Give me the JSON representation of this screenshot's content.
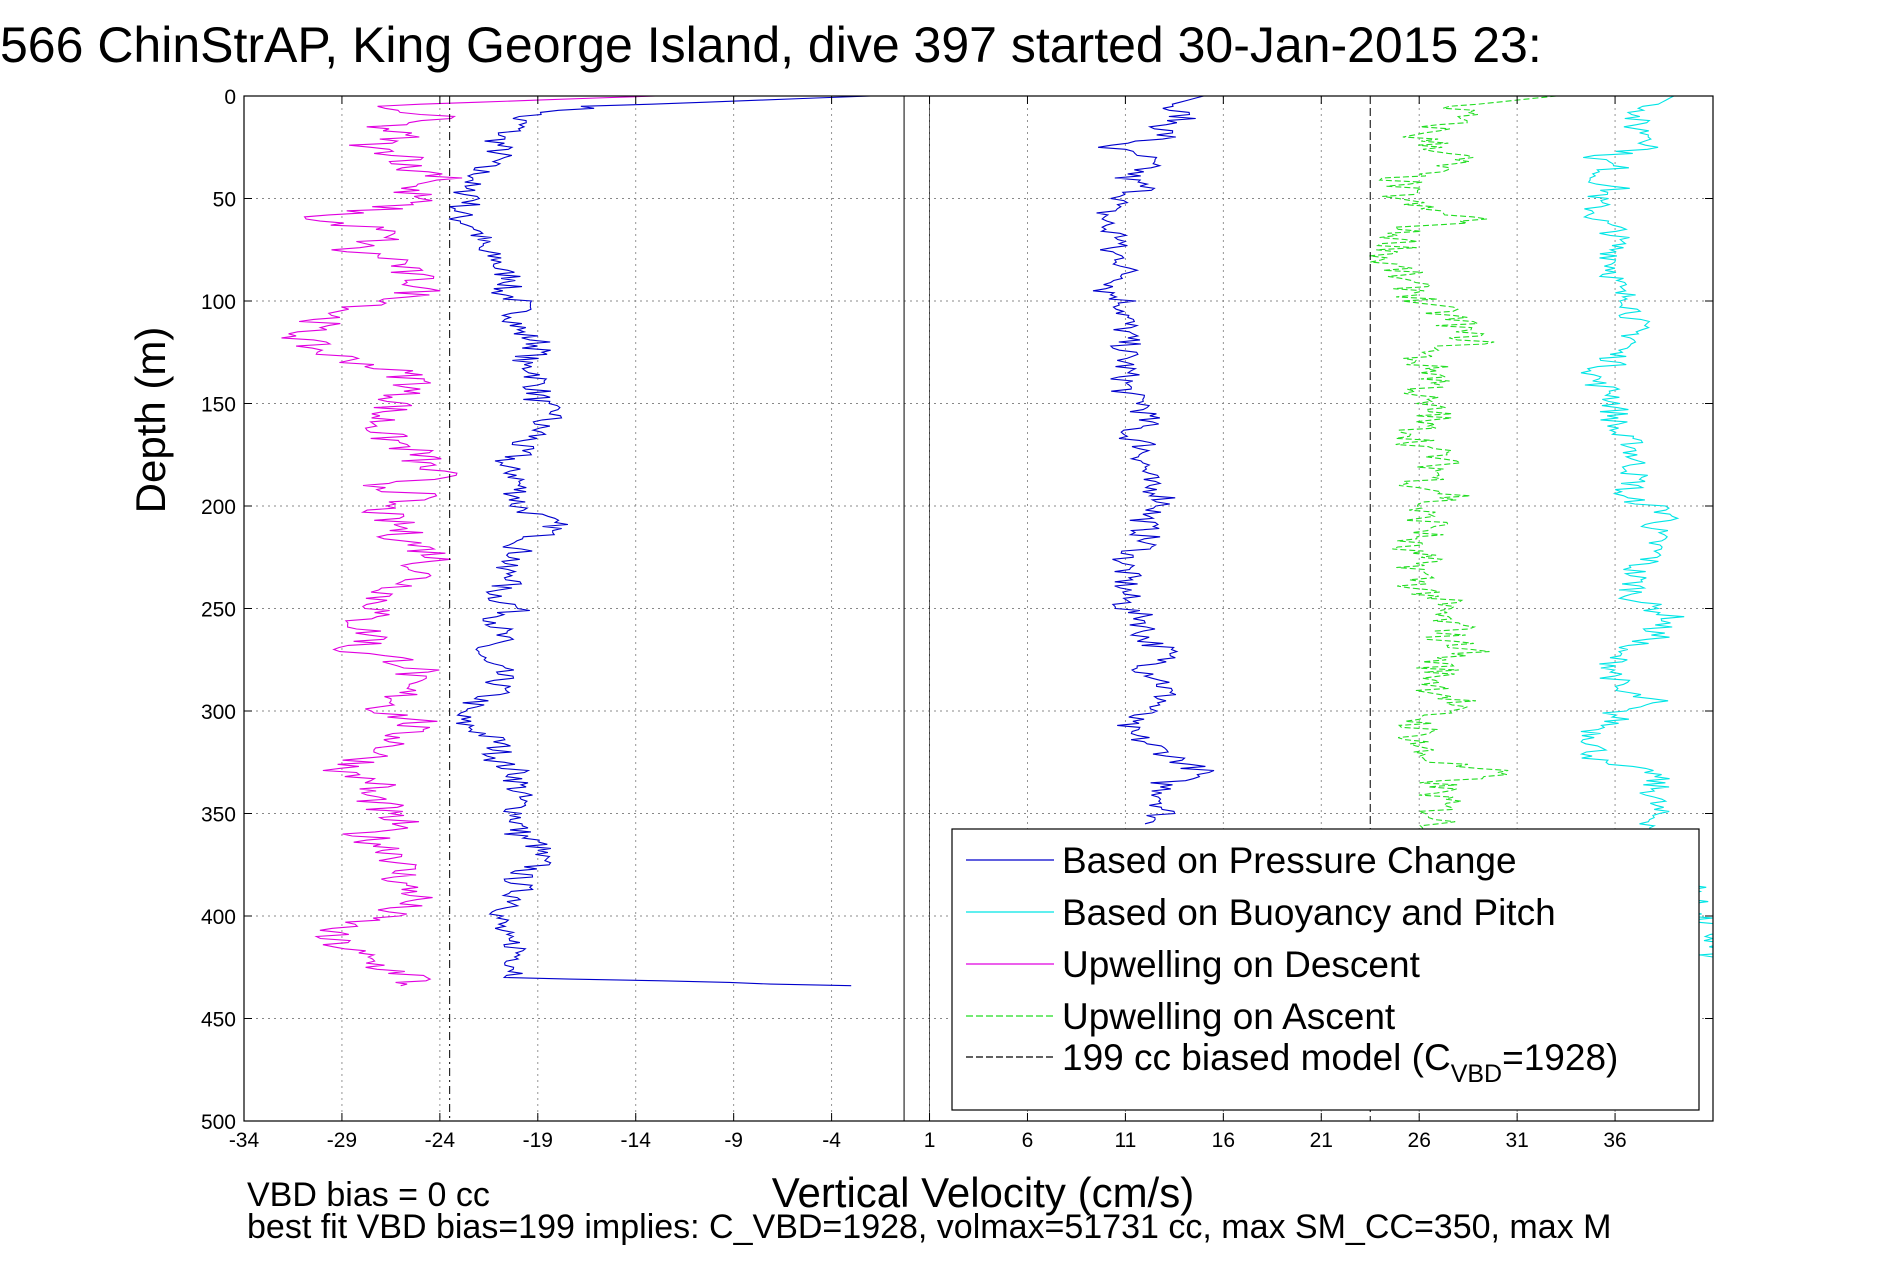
{
  "chart_data": {
    "type": "line",
    "title": "566 ChinStrAP, King George Island, dive 397 started 30-Jan-2015 23:",
    "xlabel": "Vertical Velocity (cm/s)",
    "ylabel": "Depth (m)",
    "xlim": [
      -34,
      41
    ],
    "ylim": [
      500,
      0
    ],
    "y_reversed": true,
    "grid": true,
    "x_ticks": [
      "-34",
      "-29",
      "-24",
      "-19",
      "-14",
      "-9",
      "-4",
      "1",
      "6",
      "11",
      "16",
      "21",
      "26",
      "31",
      "36"
    ],
    "y_ticks": [
      "0",
      "50",
      "100",
      "150",
      "200",
      "250",
      "300",
      "350",
      "400",
      "450",
      "500"
    ],
    "legend_position": "bottom-right",
    "series": [
      {
        "name": "Based on Pressure Change",
        "color": "#0000cc",
        "style": "solid",
        "descent": {
          "depth": [
            0,
            5,
            10,
            15,
            20,
            25,
            30,
            35,
            40,
            45,
            50,
            55,
            60,
            65,
            70,
            75,
            80,
            85,
            90,
            95,
            100,
            105,
            110,
            115,
            120,
            125,
            130,
            135,
            140,
            145,
            150,
            155,
            160,
            165,
            170,
            175,
            180,
            185,
            190,
            195,
            200,
            205,
            210,
            215,
            220,
            225,
            230,
            235,
            240,
            245,
            250,
            255,
            260,
            265,
            270,
            275,
            280,
            285,
            290,
            295,
            300,
            305,
            310,
            315,
            320,
            325,
            330,
            335,
            340,
            345,
            350,
            355,
            360,
            365,
            370,
            375,
            380,
            385,
            390,
            395,
            400,
            405,
            410,
            415,
            420,
            425,
            430,
            434
          ],
          "v": [
            -2,
            -16,
            -20,
            -20,
            -21,
            -21,
            -21,
            -22,
            -22,
            -23,
            -22,
            -23,
            -23,
            -22,
            -22,
            -22,
            -21,
            -21,
            -20,
            -21,
            -20,
            -20,
            -20,
            -20,
            -19,
            -19,
            -20,
            -19,
            -19,
            -19,
            -19,
            -18,
            -19,
            -19,
            -20,
            -20,
            -21,
            -20,
            -20,
            -20,
            -20,
            -19,
            -18,
            -19,
            -20,
            -20,
            -21,
            -20,
            -21,
            -21,
            -20,
            -21,
            -21,
            -21,
            -22,
            -22,
            -21,
            -21,
            -21,
            -22,
            -23,
            -23,
            -22,
            -21,
            -21,
            -21,
            -20,
            -20,
            -20,
            -20,
            -20,
            -20,
            -20,
            -19,
            -19,
            -19,
            -20,
            -20,
            -20,
            -20,
            -21,
            -21,
            -21,
            -20,
            -20,
            -20,
            -20,
            -3
          ]
        },
        "ascent": {
          "depth": [
            0,
            5,
            10,
            15,
            20,
            25,
            30,
            35,
            40,
            45,
            50,
            55,
            60,
            65,
            70,
            75,
            80,
            85,
            90,
            95,
            100,
            105,
            110,
            115,
            120,
            125,
            130,
            135,
            140,
            145,
            150,
            155,
            160,
            165,
            170,
            175,
            180,
            185,
            190,
            195,
            200,
            205,
            210,
            215,
            220,
            225,
            230,
            235,
            240,
            245,
            250,
            255,
            260,
            265,
            270,
            275,
            280,
            285,
            290,
            295,
            300,
            305,
            310,
            315,
            320,
            325,
            330,
            335,
            340,
            345,
            350,
            355
          ],
          "v": [
            15,
            13,
            14,
            13,
            13,
            10,
            12,
            12,
            11,
            12,
            11,
            10,
            10,
            10,
            11,
            10,
            11,
            11,
            11,
            10,
            11,
            11,
            11,
            11,
            11,
            11,
            11,
            11,
            11,
            11,
            12,
            12,
            12,
            11,
            12,
            12,
            12,
            12,
            12,
            13,
            13,
            12,
            12,
            12,
            12,
            11,
            11,
            11,
            11,
            11,
            11,
            12,
            12,
            12,
            13,
            13,
            12,
            13,
            13,
            13,
            12,
            11,
            11,
            12,
            13,
            14,
            15,
            13,
            13,
            13,
            13,
            12
          ]
        }
      },
      {
        "name": "Based on Buoyancy and Pitch",
        "color": "#00e5e5",
        "style": "solid",
        "ascent": {
          "depth": [
            0,
            5,
            10,
            15,
            20,
            25,
            30,
            35,
            40,
            45,
            50,
            55,
            60,
            65,
            70,
            75,
            80,
            85,
            90,
            95,
            100,
            105,
            110,
            115,
            120,
            125,
            130,
            135,
            140,
            145,
            150,
            155,
            160,
            165,
            170,
            175,
            180,
            185,
            190,
            195,
            200,
            205,
            210,
            215,
            220,
            225,
            230,
            235,
            240,
            245,
            250,
            255,
            260,
            265,
            270,
            275,
            280,
            285,
            290,
            295,
            300,
            305,
            310,
            315,
            320,
            325,
            330,
            335,
            340,
            345,
            350,
            355,
            360,
            365,
            370,
            375,
            380,
            385,
            390,
            395,
            400,
            405,
            410,
            415,
            420
          ],
          "v": [
            39,
            38,
            37,
            37,
            38,
            38,
            35,
            36,
            35,
            36,
            35,
            35,
            35,
            36,
            36,
            36,
            36,
            36,
            36,
            36,
            37,
            37,
            37,
            37,
            37,
            36,
            36,
            35,
            35,
            36,
            36,
            36,
            36,
            36,
            37,
            37,
            37,
            37,
            37,
            36,
            38,
            39,
            38,
            38,
            38,
            38,
            37,
            37,
            37,
            37,
            38,
            39,
            38,
            38,
            36,
            36,
            36,
            36,
            36,
            38,
            36,
            36,
            35,
            35,
            35,
            35,
            38,
            38,
            38,
            38,
            38,
            38,
            38,
            38,
            38,
            38,
            40,
            40,
            40,
            40,
            40,
            41,
            41,
            41,
            41
          ]
        }
      },
      {
        "name": "Upwelling on Descent",
        "color": "#e000e0",
        "style": "solid",
        "depth": [
          0,
          5,
          10,
          15,
          20,
          25,
          30,
          35,
          40,
          45,
          50,
          55,
          60,
          65,
          70,
          75,
          80,
          85,
          90,
          95,
          100,
          105,
          110,
          115,
          120,
          125,
          130,
          135,
          140,
          145,
          150,
          155,
          160,
          165,
          170,
          175,
          180,
          185,
          190,
          195,
          200,
          205,
          210,
          215,
          220,
          225,
          230,
          235,
          240,
          245,
          250,
          255,
          260,
          265,
          270,
          275,
          280,
          285,
          290,
          295,
          300,
          305,
          310,
          315,
          320,
          325,
          330,
          335,
          340,
          345,
          350,
          355,
          360,
          365,
          370,
          375,
          380,
          385,
          390,
          395,
          400,
          405,
          410,
          415,
          420,
          425,
          430,
          434
        ],
        "v": [
          -13,
          -28,
          -24,
          -27,
          -26,
          -28,
          -25,
          -26,
          -23,
          -26,
          -25,
          -27,
          -31,
          -27,
          -27,
          -29,
          -26,
          -26,
          -25,
          -25,
          -26,
          -29,
          -30,
          -31,
          -31,
          -30,
          -28,
          -26,
          -25,
          -26,
          -26,
          -27,
          -27,
          -27,
          -26,
          -25,
          -25,
          -24,
          -27,
          -25,
          -27,
          -27,
          -26,
          -26,
          -25,
          -24,
          -25,
          -25,
          -26,
          -27,
          -27,
          -28,
          -28,
          -27,
          -29,
          -26,
          -25,
          -26,
          -26,
          -26,
          -27,
          -25,
          -26,
          -26,
          -27,
          -28,
          -29,
          -27,
          -28,
          -27,
          -27,
          -26,
          -28,
          -27,
          -26,
          -26,
          -26,
          -26,
          -25,
          -26,
          -27,
          -29,
          -30,
          -29,
          -28,
          -27,
          -25,
          -26
        ]
      },
      {
        "name": "Upwelling on Ascent",
        "color": "#22dd22",
        "style": "dashed",
        "depth": [
          0,
          5,
          10,
          15,
          20,
          25,
          30,
          35,
          40,
          45,
          50,
          55,
          60,
          65,
          70,
          75,
          80,
          85,
          90,
          95,
          100,
          105,
          110,
          115,
          120,
          125,
          130,
          135,
          140,
          145,
          150,
          155,
          160,
          165,
          170,
          175,
          180,
          185,
          190,
          195,
          200,
          205,
          210,
          215,
          220,
          225,
          230,
          235,
          240,
          245,
          250,
          255,
          260,
          265,
          270,
          275,
          280,
          285,
          290,
          295,
          300,
          305,
          310,
          315,
          320,
          325,
          330,
          335,
          340,
          345,
          350,
          355,
          360
        ],
        "v": [
          33,
          28,
          28,
          27,
          26,
          27,
          28,
          27,
          25,
          25,
          25,
          26,
          29,
          25,
          25,
          25,
          24,
          25,
          25,
          26,
          26,
          27,
          28,
          28,
          29,
          26,
          26,
          27,
          27,
          26,
          26,
          27,
          26,
          26,
          26,
          27,
          27,
          27,
          26,
          28,
          26,
          26,
          27,
          26,
          25,
          26,
          26,
          26,
          26,
          27,
          27,
          27,
          28,
          27,
          29,
          27,
          27,
          27,
          27,
          28,
          27,
          26,
          26,
          26,
          26,
          27,
          30,
          27,
          27,
          27,
          27,
          27,
          27
        ]
      },
      {
        "name": "199 cc biased model (C",
        "name_sub": "VBD",
        "name_tail": "=1928)",
        "color": "#000000",
        "style": "dashed",
        "descent_v": -23.5,
        "ascent_v": 23.5
      }
    ],
    "notes": [
      "VBD bias = 0 cc",
      "best fit VBD bias=199 implies: C_VBD=1928, volmax=51731 cc, max SM_CC=350, max M"
    ],
    "zero_line_v": -0.3,
    "extra_line_v": 1.0
  }
}
